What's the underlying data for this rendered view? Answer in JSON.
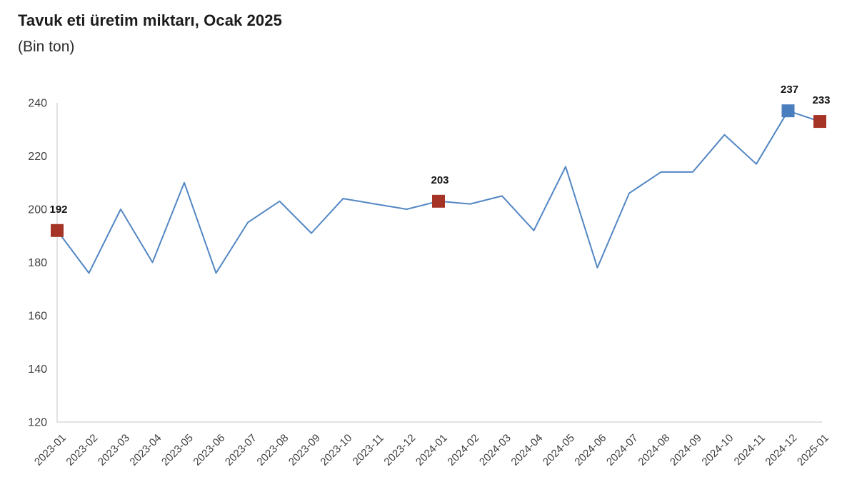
{
  "header": {
    "title": "Tavuk eti üretim miktarı, Ocak 2025",
    "subtitle": "(Bin ton)"
  },
  "chart_data": {
    "type": "line",
    "title": "Tavuk eti üretim miktarı, Ocak 2025",
    "subtitle": "(Bin ton)",
    "x": [
      "2023-01",
      "2023-02",
      "2023-03",
      "2023-04",
      "2023-05",
      "2023-06",
      "2023-07",
      "2023-08",
      "2023-09",
      "2023-10",
      "2023-11",
      "2023-12",
      "2024-01",
      "2024-02",
      "2024-03",
      "2024-04",
      "2024-05",
      "2024-06",
      "2024-07",
      "2024-08",
      "2024-09",
      "2024-10",
      "2024-11",
      "2024-12",
      "2025-01"
    ],
    "series": [
      {
        "name": "Tavuk eti üretim miktarı (Bin ton)",
        "values": [
          192,
          176,
          200,
          180,
          210,
          176,
          195,
          203,
          191,
          204,
          202,
          200,
          203,
          202,
          205,
          192,
          216,
          178,
          206,
          214,
          214,
          228,
          217,
          237,
          233
        ]
      }
    ],
    "xlabel": "",
    "ylabel": "",
    "ylim": [
      120,
      240
    ],
    "yticks": [
      120,
      140,
      160,
      180,
      200,
      220,
      240
    ],
    "grid": false,
    "legend_position": "none",
    "line_color": "#5286c3",
    "axis_color": "#d9d9d9",
    "highlight_points": [
      {
        "x": "2023-01",
        "index": 0,
        "value": 192,
        "label": "192",
        "color": "#a53427"
      },
      {
        "x": "2024-01",
        "index": 12,
        "value": 203,
        "label": "203",
        "color": "#a53427"
      },
      {
        "x": "2024-12",
        "index": 23,
        "value": 237,
        "label": "237",
        "color": "#4a7ebc"
      },
      {
        "x": "2025-01",
        "index": 24,
        "value": 233,
        "label": "233",
        "color": "#a53427"
      }
    ]
  }
}
